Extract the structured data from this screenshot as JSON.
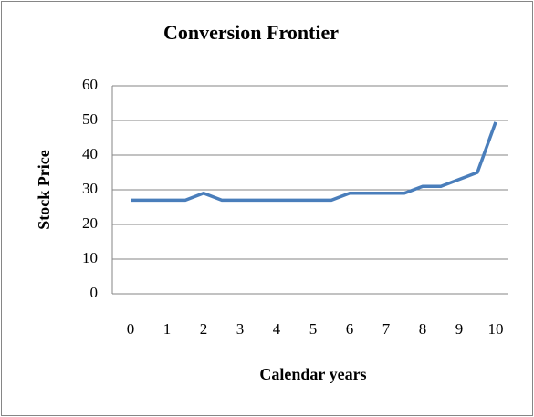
{
  "chart_data": {
    "type": "line",
    "title": "Conversion Frontier",
    "x_label": "Calendar years",
    "y_label": "Stock Price",
    "x": [
      0,
      0.5,
      1,
      1.5,
      2,
      2.5,
      3,
      3.5,
      4,
      4.5,
      5,
      5.5,
      6,
      6.5,
      7,
      7.5,
      8,
      8.5,
      9,
      9.5,
      10
    ],
    "series": [
      {
        "name": "Stock Price",
        "color": "#4a7ebb",
        "values": [
          27,
          27,
          27,
          27,
          29,
          27,
          27,
          27,
          27,
          27,
          27,
          27,
          29,
          29,
          29,
          29,
          31,
          31,
          33,
          35,
          49.5
        ]
      }
    ],
    "xlim": [
      -0.5,
      10.5
    ],
    "xticks": [
      0,
      1,
      2,
      3,
      4,
      5,
      6,
      7,
      8,
      9,
      10
    ],
    "ylim": [
      0,
      60
    ],
    "yticks": [
      0,
      10,
      20,
      30,
      40,
      50,
      60
    ],
    "grid": true
  }
}
